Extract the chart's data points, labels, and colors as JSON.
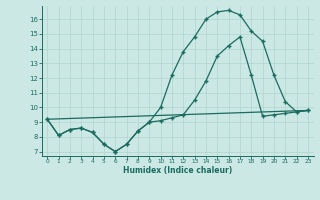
{
  "xlabel": "Humidex (Indice chaleur)",
  "xlim": [
    -0.5,
    23.5
  ],
  "ylim": [
    6.7,
    16.9
  ],
  "yticks": [
    7,
    8,
    9,
    10,
    11,
    12,
    13,
    14,
    15,
    16
  ],
  "xticks": [
    0,
    1,
    2,
    3,
    4,
    5,
    6,
    7,
    8,
    9,
    10,
    11,
    12,
    13,
    14,
    15,
    16,
    17,
    18,
    19,
    20,
    21,
    22,
    23
  ],
  "background_color": "#cce8e4",
  "grid_color": "#b0d4ce",
  "line_color": "#1a6b60",
  "curve1_x": [
    0,
    1,
    2,
    3,
    4,
    5,
    6,
    7,
    8,
    9,
    10,
    11,
    12,
    13,
    14,
    15,
    16,
    17,
    18,
    19,
    20,
    21,
    22,
    23
  ],
  "curve1_y": [
    9.2,
    8.1,
    8.5,
    8.6,
    8.3,
    7.5,
    7.0,
    7.5,
    8.4,
    9.0,
    10.0,
    12.2,
    13.8,
    14.8,
    16.0,
    16.5,
    16.6,
    16.3,
    15.2,
    14.5,
    12.2,
    10.4,
    9.7,
    9.8
  ],
  "curve2_x": [
    0,
    1,
    2,
    3,
    4,
    5,
    6,
    7,
    8,
    9,
    10,
    11,
    12,
    13,
    14,
    15,
    16,
    17,
    18,
    19,
    20,
    21,
    22,
    23
  ],
  "curve2_y": [
    9.2,
    8.1,
    8.5,
    8.6,
    8.3,
    7.5,
    7.0,
    7.5,
    8.4,
    9.0,
    9.1,
    9.3,
    9.5,
    10.5,
    11.8,
    13.5,
    14.2,
    14.8,
    12.2,
    9.4,
    9.5,
    9.6,
    9.7,
    9.8
  ],
  "line3_x": [
    0,
    23
  ],
  "line3_y": [
    9.2,
    9.8
  ]
}
